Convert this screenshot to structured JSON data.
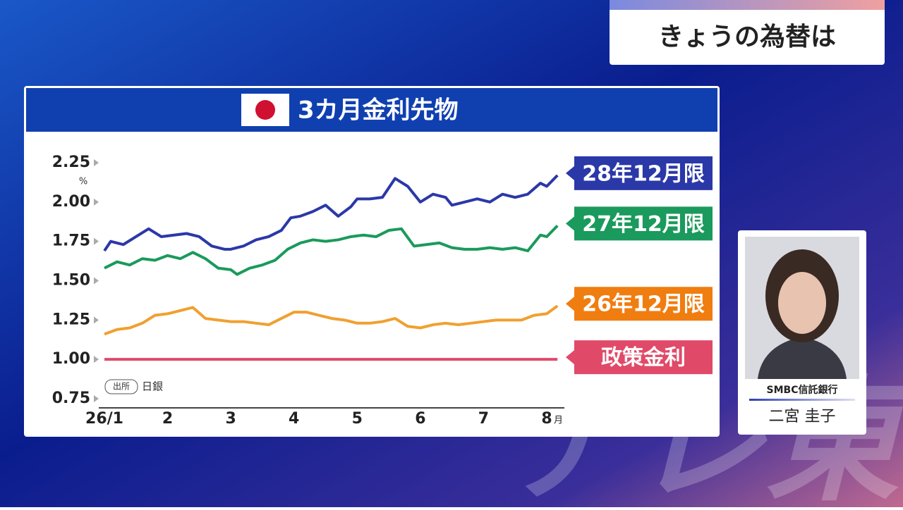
{
  "header": {
    "title": "きょうの為替は"
  },
  "watermark": "テレ東",
  "chart_data": {
    "type": "line",
    "title": "3カ月金利先物",
    "y_unit": "%",
    "x_unit": "月",
    "source_label": "出所",
    "source": "日銀",
    "xlim": [
      0.85,
      8.6
    ],
    "ylim": [
      0.75,
      2.25
    ],
    "xticks": [
      {
        "value": 1,
        "label": "26/1"
      },
      2,
      3,
      4,
      5,
      6,
      7,
      8
    ],
    "yticks": [
      0.75,
      {
        "value": 1,
        "label": "1.00"
      },
      1.25,
      {
        "value": 1.5,
        "label": "1.50"
      },
      1.75,
      {
        "value": 2,
        "label": "2.00"
      },
      2.25
    ],
    "grid": false,
    "series": [
      {
        "name": "28年12月限",
        "color": "#2b38a8",
        "x": [
          1,
          1.1,
          1.3,
          1.5,
          1.7,
          1.9,
          2.1,
          2.3,
          2.5,
          2.7,
          2.9,
          3.0,
          3.2,
          3.4,
          3.6,
          3.8,
          3.95,
          4.1,
          4.3,
          4.5,
          4.7,
          4.9,
          5.0,
          5.2,
          5.4,
          5.6,
          5.8,
          6.0,
          6.2,
          6.4,
          6.5,
          6.7,
          6.9,
          7.1,
          7.3,
          7.5,
          7.7,
          7.9,
          8.0,
          8.17
        ],
        "values": [
          1.69,
          1.75,
          1.73,
          1.78,
          1.83,
          1.78,
          1.79,
          1.8,
          1.78,
          1.72,
          1.7,
          1.7,
          1.72,
          1.76,
          1.78,
          1.82,
          1.9,
          1.91,
          1.94,
          1.98,
          1.91,
          1.97,
          2.02,
          2.02,
          2.03,
          2.15,
          2.1,
          2.0,
          2.05,
          2.03,
          1.98,
          2.0,
          2.02,
          2.0,
          2.05,
          2.03,
          2.05,
          2.12,
          2.1,
          2.17
        ]
      },
      {
        "name": "27年12月限",
        "color": "#1a9a5c",
        "x": [
          1,
          1.2,
          1.4,
          1.6,
          1.8,
          2.0,
          2.2,
          2.4,
          2.6,
          2.8,
          3.0,
          3.1,
          3.3,
          3.5,
          3.7,
          3.9,
          4.1,
          4.3,
          4.5,
          4.7,
          4.9,
          5.1,
          5.3,
          5.5,
          5.7,
          5.9,
          6.1,
          6.3,
          6.5,
          6.7,
          6.9,
          7.1,
          7.3,
          7.5,
          7.7,
          7.9,
          8.0,
          8.17
        ],
        "values": [
          1.58,
          1.62,
          1.6,
          1.64,
          1.63,
          1.66,
          1.64,
          1.68,
          1.64,
          1.58,
          1.57,
          1.54,
          1.58,
          1.6,
          1.63,
          1.7,
          1.74,
          1.76,
          1.75,
          1.76,
          1.78,
          1.79,
          1.78,
          1.82,
          1.83,
          1.72,
          1.73,
          1.74,
          1.71,
          1.7,
          1.7,
          1.71,
          1.7,
          1.71,
          1.69,
          1.79,
          1.78,
          1.85
        ]
      },
      {
        "name": "26年12月限",
        "color": "#f0a030",
        "x": [
          1,
          1.2,
          1.4,
          1.6,
          1.8,
          2.0,
          2.2,
          2.4,
          2.6,
          2.8,
          3.0,
          3.2,
          3.4,
          3.6,
          3.8,
          4.0,
          4.2,
          4.4,
          4.6,
          4.8,
          5.0,
          5.2,
          5.4,
          5.6,
          5.8,
          6.0,
          6.2,
          6.4,
          6.6,
          6.8,
          7.0,
          7.2,
          7.4,
          7.6,
          7.8,
          8.0,
          8.17
        ],
        "values": [
          1.16,
          1.19,
          1.2,
          1.23,
          1.28,
          1.29,
          1.31,
          1.33,
          1.26,
          1.25,
          1.24,
          1.24,
          1.23,
          1.22,
          1.26,
          1.3,
          1.3,
          1.28,
          1.26,
          1.25,
          1.23,
          1.23,
          1.24,
          1.26,
          1.21,
          1.2,
          1.22,
          1.23,
          1.22,
          1.23,
          1.24,
          1.25,
          1.25,
          1.25,
          1.28,
          1.29,
          1.34
        ]
      },
      {
        "name": "政策金利",
        "color": "#e04a68",
        "x": [
          1,
          8.17
        ],
        "values": [
          1,
          1
        ]
      }
    ],
    "label_colors": [
      "#2b38a8",
      "#1a9a5c",
      "#f07d10",
      "#e04a68"
    ]
  },
  "commentator": {
    "company": "SMBC信託銀行",
    "name": "二宮 圭子"
  }
}
